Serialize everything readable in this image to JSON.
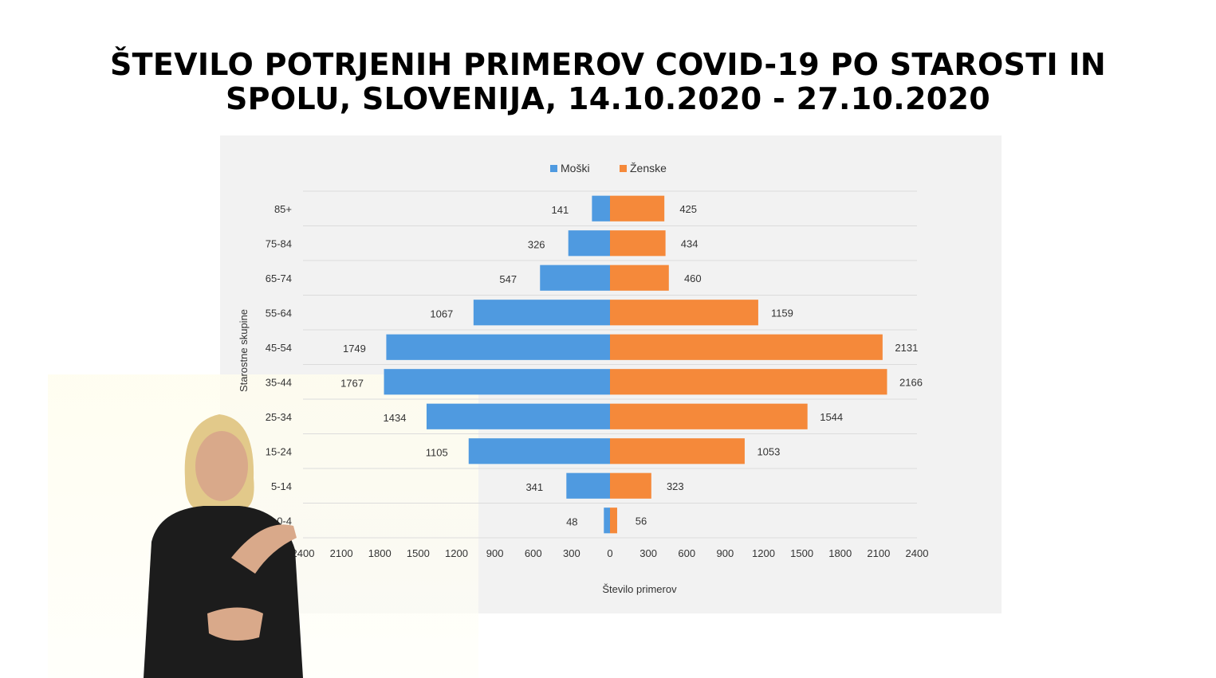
{
  "title": {
    "line1": "ŠTEVILO POTRJENIH PRIMEROV COVID-19 PO STAROSTI IN",
    "line2": "SPOLU, SLOVENIJA, 14.10.2020 - 27.10.2020"
  },
  "chart_data": {
    "type": "bar",
    "orientation": "horizontal-population-pyramid",
    "categories": [
      "85+",
      "75-84",
      "65-74",
      "55-64",
      "45-54",
      "35-44",
      "25-34",
      "15-24",
      "5-14",
      "0-4"
    ],
    "series": [
      {
        "name": "Moški",
        "values": [
          141,
          326,
          547,
          1067,
          1749,
          1767,
          1434,
          1105,
          341,
          48
        ],
        "color": "#4f9ae0"
      },
      {
        "name": "Ženske",
        "values": [
          425,
          434,
          460,
          1159,
          2131,
          2166,
          1544,
          1053,
          323,
          56
        ],
        "color": "#f5893a"
      }
    ],
    "xlabel": "Število primerov",
    "ylabel": "Starostne skupine",
    "xlim": [
      -2400,
      2400
    ],
    "x_ticks": [
      "2400",
      "2100",
      "1800",
      "1500",
      "1200",
      "900",
      "600",
      "300",
      "0",
      "300",
      "600",
      "900",
      "1200",
      "1500",
      "1800",
      "2100",
      "2400"
    ],
    "legend_position": "top",
    "grid": true
  }
}
